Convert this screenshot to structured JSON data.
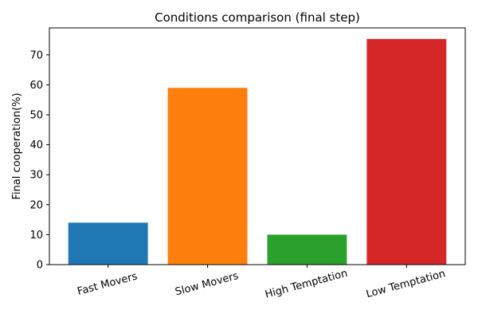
{
  "chart_data": {
    "type": "bar",
    "title": "Conditions comparison (final step)",
    "xlabel": "",
    "ylabel": "Final cooperation(%)",
    "categories": [
      "Fast Movers",
      "Slow Movers",
      "High Temptation",
      "Low Temptation"
    ],
    "values": [
      14,
      59,
      10,
      75.3
    ],
    "colors": [
      "#1f77b4",
      "#ff7f0e",
      "#2ca02c",
      "#d62728"
    ],
    "ylim": [
      0,
      79
    ],
    "yticks": [
      0,
      10,
      20,
      30,
      40,
      50,
      60,
      70
    ],
    "grid": false,
    "legend": "none"
  }
}
